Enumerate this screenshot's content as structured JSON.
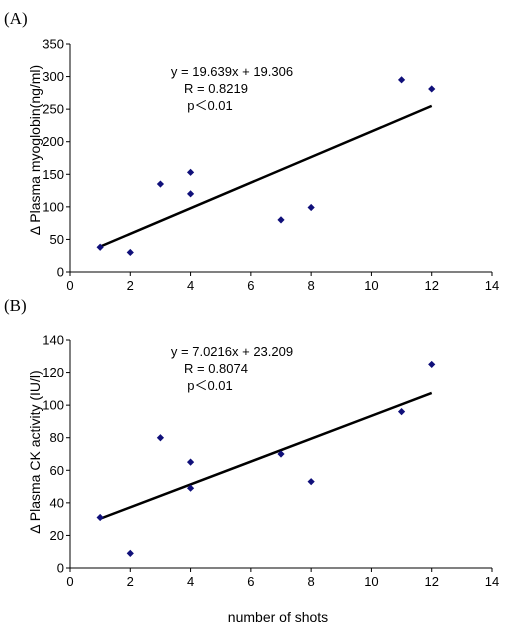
{
  "chart_data": [
    {
      "type": "scatter",
      "panel_label": "(A)",
      "ylabel": "Δ Plasma myoglobin(ng/ml)",
      "xlabel": "",
      "xlim": [
        0,
        14
      ],
      "ylim": [
        0,
        350
      ],
      "xticks": [
        "0",
        "2",
        "4",
        "6",
        "8",
        "10",
        "12",
        "14"
      ],
      "yticks": [
        "0",
        "50",
        "100",
        "150",
        "200",
        "250",
        "300",
        "350"
      ],
      "points": [
        {
          "x": 1,
          "y": 38
        },
        {
          "x": 2,
          "y": 30
        },
        {
          "x": 3,
          "y": 135
        },
        {
          "x": 4,
          "y": 153
        },
        {
          "x": 4,
          "y": 120
        },
        {
          "x": 7,
          "y": 80
        },
        {
          "x": 8,
          "y": 99
        },
        {
          "x": 11,
          "y": 295
        },
        {
          "x": 12,
          "y": 281
        }
      ],
      "trendline": {
        "slope": 19.639,
        "intercept": 19.306,
        "x_range": [
          1,
          12
        ]
      },
      "annotations": [
        "y = 19.639x + 19.306",
        "R = 0.8219",
        "p＜0.01"
      ],
      "marker_color": "#10107a",
      "grid": false
    },
    {
      "type": "scatter",
      "panel_label": "(B)",
      "ylabel": "Δ Plasma CK activity (IU/l)",
      "xlabel": "number of shots",
      "xlim": [
        0,
        14
      ],
      "ylim": [
        0,
        140
      ],
      "xticks": [
        "0",
        "2",
        "4",
        "6",
        "8",
        "10",
        "12",
        "14"
      ],
      "yticks": [
        "0",
        "20",
        "40",
        "60",
        "80",
        "100",
        "120",
        "140"
      ],
      "points": [
        {
          "x": 1,
          "y": 31
        },
        {
          "x": 2,
          "y": 9
        },
        {
          "x": 3,
          "y": 80
        },
        {
          "x": 4,
          "y": 65
        },
        {
          "x": 4,
          "y": 49
        },
        {
          "x": 7,
          "y": 70
        },
        {
          "x": 8,
          "y": 53
        },
        {
          "x": 11,
          "y": 96
        },
        {
          "x": 12,
          "y": 125
        }
      ],
      "trendline": {
        "slope": 7.0216,
        "intercept": 23.209,
        "x_range": [
          1,
          12
        ]
      },
      "annotations": [
        "y = 7.0216x + 23.209",
        "R = 0.8074",
        "p＜0.01"
      ],
      "marker_color": "#10107a",
      "grid": false
    }
  ]
}
